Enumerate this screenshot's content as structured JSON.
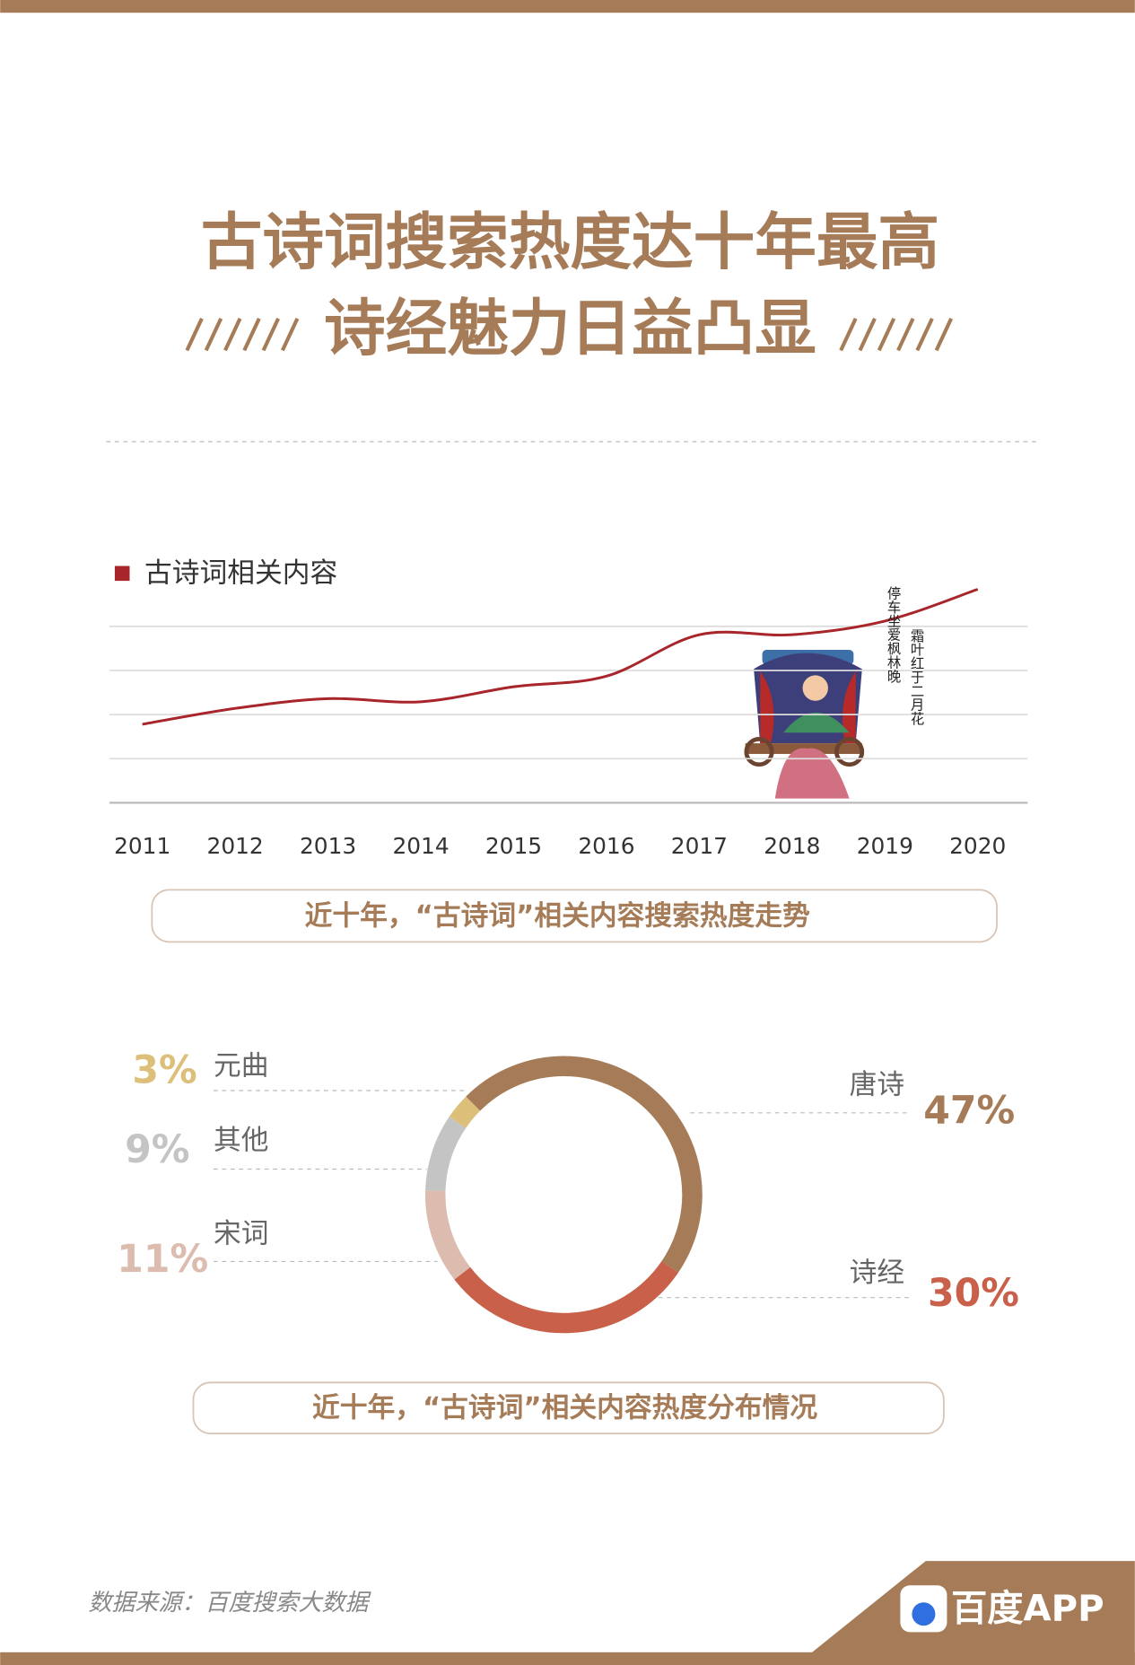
{
  "header": {
    "title_line1": "古诗词搜索热度达十年最高",
    "title_line2": "诗经魅力日益凸显"
  },
  "chart_data": [
    {
      "type": "line",
      "caption": "近十年，“古诗词”相关内容搜索热度走势",
      "categories": [
        "2011",
        "2012",
        "2013",
        "2014",
        "2015",
        "2016",
        "2017",
        "2018",
        "2019",
        "2020"
      ],
      "series": [
        {
          "name": "古诗词相关内容",
          "color": "#a8262b",
          "values": [
            1.78,
            2.14,
            2.36,
            2.29,
            2.63,
            2.87,
            3.81,
            3.81,
            4.12,
            4.84
          ]
        }
      ],
      "ylim": [
        0,
        5.2
      ],
      "yticks": [
        0,
        1,
        2,
        3,
        4
      ],
      "ytick_labels": false,
      "grid": true,
      "annotations": [
        "停车坐爱枫林晚",
        "霜叶红于二月花"
      ]
    },
    {
      "type": "donut",
      "caption": "近十年，“古诗词”相关内容热度分布情况",
      "categories": [
        "唐诗",
        "诗经",
        "宋词",
        "其他",
        "元曲"
      ],
      "values": [
        47,
        30,
        11,
        9,
        3
      ],
      "value_labels": [
        "47%",
        "30%",
        "11%",
        "9%",
        "3%"
      ],
      "colors": [
        "#a67c58",
        "#c8604a",
        "#dcbcae",
        "#c4c4c4",
        "#dcc07a"
      ]
    }
  ],
  "footer": {
    "source": "数据来源：百度搜索大数据",
    "logo": "百度APP"
  }
}
